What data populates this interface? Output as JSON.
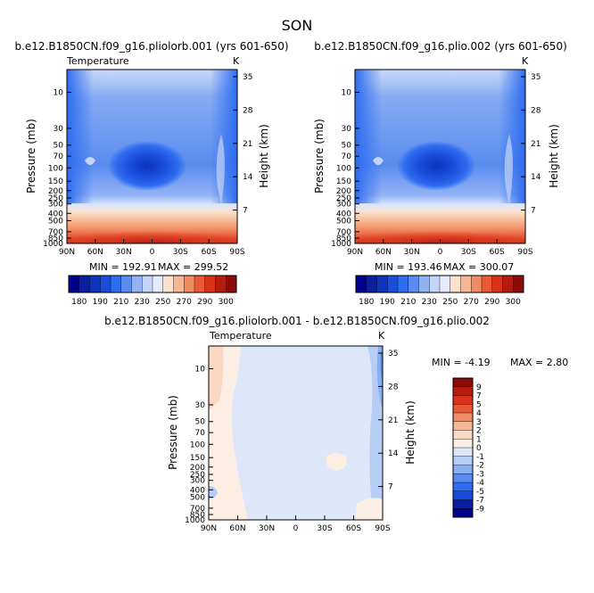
{
  "figure": {
    "title": "SON"
  },
  "colors": {
    "frame": "#000000"
  },
  "chart_data": [
    {
      "type": "heatmap",
      "title": "b.e12.B1850CN.f09_g16.pliolorb.001 (yrs 601-650)",
      "subtitle_left": "Temperature",
      "subtitle_right": "K",
      "xlabel": "",
      "ylabel": "Pressure (mb)",
      "ylabel_right": "Height (km)",
      "x_ticks": [
        "90N",
        "60N",
        "30N",
        "0",
        "30S",
        "60S",
        "90S"
      ],
      "y_ticks": [
        "10",
        "30",
        "50",
        "70",
        "100",
        "150",
        "200",
        "250",
        "300",
        "400",
        "500",
        "700",
        "850",
        "1000"
      ],
      "y_ticks_right": [
        "35",
        "28",
        "21",
        "14",
        "7"
      ],
      "min_label": "MIN = 192.91",
      "max_label": "MAX = 299.52",
      "colorbar_levels": [
        "180",
        "190",
        "200",
        "210",
        "220",
        "230",
        "240",
        "250",
        "260",
        "270",
        "280",
        "290",
        "300"
      ],
      "colorbar_labels": [
        "180",
        "190",
        "210",
        "230",
        "250",
        "270",
        "290",
        "300"
      ],
      "colorbar_colors": [
        "#00008c",
        "#0a1ea0",
        "#0d34bd",
        "#1a4ddc",
        "#2e6cf0",
        "#5a8cf0",
        "#92b2f4",
        "#c4d6f8",
        "#e4ecfb",
        "#fbe0cc",
        "#f6b894",
        "#f08c64",
        "#e85a36",
        "#d8321a",
        "#b41c10",
        "#8c0a08"
      ]
    },
    {
      "type": "heatmap",
      "title": "b.e12.B1850CN.f09_g16.plio.002 (yrs 601-650)",
      "subtitle_left": "",
      "subtitle_right": "K",
      "xlabel": "",
      "ylabel": "Pressure (mb)",
      "ylabel_right": "Height (km)",
      "x_ticks": [
        "90N",
        "60N",
        "30N",
        "0",
        "30S",
        "60S",
        "90S"
      ],
      "y_ticks": [
        "10",
        "30",
        "50",
        "70",
        "100",
        "150",
        "200",
        "250",
        "300",
        "400",
        "500",
        "700",
        "850",
        "1000"
      ],
      "y_ticks_right": [
        "35",
        "28",
        "21",
        "14",
        "7"
      ],
      "min_label": "MIN = 193.46",
      "max_label": "MAX = 300.07",
      "colorbar_levels": [
        "180",
        "190",
        "200",
        "210",
        "220",
        "230",
        "240",
        "250",
        "260",
        "270",
        "280",
        "290",
        "300"
      ],
      "colorbar_labels": [
        "180",
        "190",
        "210",
        "230",
        "250",
        "270",
        "290",
        "300"
      ],
      "colorbar_colors": [
        "#00008c",
        "#0a1ea0",
        "#0d34bd",
        "#1a4ddc",
        "#2e6cf0",
        "#5a8cf0",
        "#92b2f4",
        "#c4d6f8",
        "#e4ecfb",
        "#fbe0cc",
        "#f6b894",
        "#f08c64",
        "#e85a36",
        "#d8321a",
        "#b41c10",
        "#8c0a08"
      ]
    },
    {
      "type": "heatmap",
      "title": "b.e12.B1850CN.f09_g16.pliolorb.001 - b.e12.B1850CN.f09_g16.plio.002",
      "subtitle_left": "Temperature",
      "subtitle_right": "K",
      "xlabel": "",
      "ylabel": "Pressure (mb)",
      "ylabel_right": "Height (km)",
      "x_ticks": [
        "90N",
        "60N",
        "30N",
        "0",
        "30S",
        "60S",
        "90S"
      ],
      "y_ticks": [
        "10",
        "30",
        "50",
        "70",
        "100",
        "150",
        "200",
        "250",
        "300",
        "400",
        "500",
        "700",
        "850",
        "1000"
      ],
      "y_ticks_right": [
        "35",
        "28",
        "21",
        "14",
        "7"
      ],
      "min_label": "MIN = -4.19",
      "max_label": "MAX = 2.80",
      "colorbar_labels": [
        "9",
        "7",
        "5",
        "4",
        "3",
        "2",
        "1",
        "0",
        "-1",
        "-2",
        "-3",
        "-4",
        "-5",
        "-7",
        "-9"
      ],
      "colorbar_colors": [
        "#8c0a08",
        "#b41c10",
        "#d8321a",
        "#e85a36",
        "#f08c64",
        "#f6b894",
        "#fbd8c4",
        "#fdeee4",
        "#dce8fa",
        "#b6cef6",
        "#8aaef2",
        "#5a8cf0",
        "#2e6cf0",
        "#1a4ddc",
        "#0a1ea0",
        "#00008c"
      ]
    }
  ]
}
